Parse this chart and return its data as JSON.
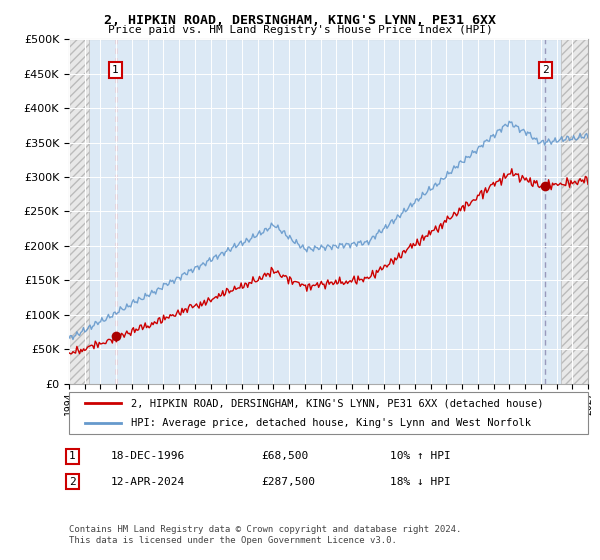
{
  "title1": "2, HIPKIN ROAD, DERSINGHAM, KING'S LYNN, PE31 6XX",
  "title2": "Price paid vs. HM Land Registry's House Price Index (HPI)",
  "legend1": "2, HIPKIN ROAD, DERSINGHAM, KING'S LYNN, PE31 6XX (detached house)",
  "legend2": "HPI: Average price, detached house, King's Lynn and West Norfolk",
  "sale1_date": "18-DEC-1996",
  "sale1_price": "£68,500",
  "sale1_hpi": "10% ↑ HPI",
  "sale2_date": "12-APR-2024",
  "sale2_price": "£287,500",
  "sale2_hpi": "18% ↓ HPI",
  "footer": "Contains HM Land Registry data © Crown copyright and database right 2024.\nThis data is licensed under the Open Government Licence v3.0.",
  "sale1_value": 68500,
  "sale2_value": 287500,
  "bg_color": "#dce9f5",
  "red_line_color": "#cc0000",
  "blue_line_color": "#6699cc",
  "sale_dot_color": "#aa0000",
  "vline1_color": "#ff8888",
  "vline2_color": "#9999bb",
  "ylim": [
    0,
    500000
  ],
  "yticks": [
    0,
    50000,
    100000,
    150000,
    200000,
    250000,
    300000,
    350000,
    400000,
    450000,
    500000
  ],
  "xstart": 1994.0,
  "xend": 2027.0,
  "sale1_x": 1996.96,
  "sale2_x": 2024.29
}
